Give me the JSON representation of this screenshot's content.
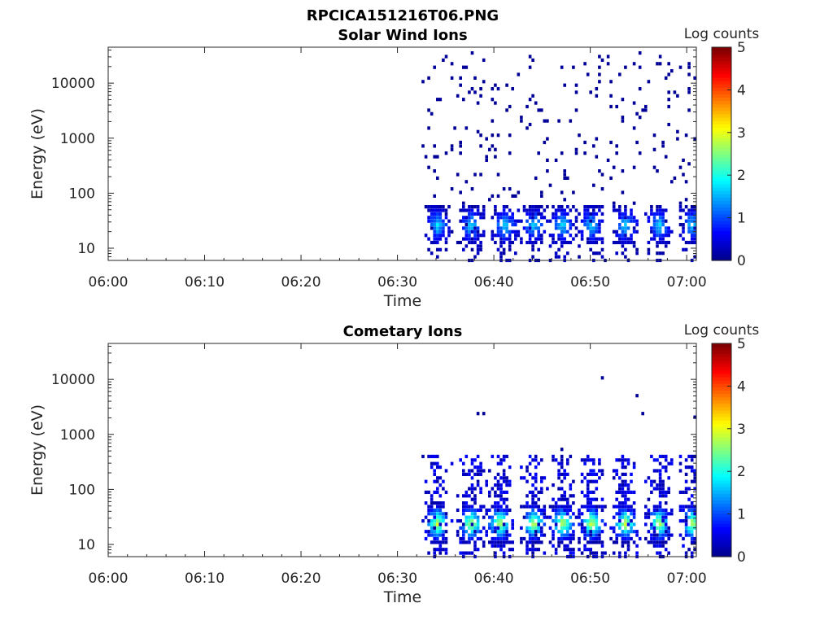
{
  "figure_title": "RPCICA151216T06.PNG",
  "colorbar_label": "Log counts",
  "colormap": [
    "#00008f",
    "#0000ff",
    "#0080ff",
    "#00ffff",
    "#80ff80",
    "#ffff00",
    "#ff8000",
    "#ff0000",
    "#800000"
  ],
  "chart_data": [
    {
      "type": "heatmap",
      "title": "Solar Wind Ions",
      "xlabel": "Time",
      "ylabel": "Energy (eV)",
      "x_ticks": [
        "06:00",
        "06:10",
        "06:20",
        "06:30",
        "06:40",
        "06:50",
        "07:00"
      ],
      "y_ticks": [
        "10",
        "100",
        "1000",
        "10000"
      ],
      "y_scale": "log",
      "x_range_minutes": [
        0,
        61
      ],
      "y_range_ev": [
        6,
        45000
      ],
      "colorbar_range": [
        0,
        5
      ],
      "colorbar_ticks": [
        "0",
        "1",
        "2",
        "3",
        "4",
        "5"
      ],
      "data_start_minutes": 32.5,
      "bursts_minutes": [
        34,
        37.5,
        41,
        44,
        47,
        50,
        53.5,
        57,
        60.5
      ],
      "pattern": "dense low-energy patches (~15-40 eV, log counts ~1-2) at each burst; sparse single counts (log counts ~0) scattered up to ~30000 eV"
    },
    {
      "type": "heatmap",
      "title": "Cometary Ions",
      "xlabel": "Time",
      "ylabel": "Energy (eV)",
      "x_ticks": [
        "06:00",
        "06:10",
        "06:20",
        "06:30",
        "06:40",
        "06:50",
        "07:00"
      ],
      "y_ticks": [
        "10",
        "100",
        "1000",
        "10000"
      ],
      "y_scale": "log",
      "x_range_minutes": [
        0,
        61
      ],
      "y_range_ev": [
        6,
        45000
      ],
      "colorbar_range": [
        0,
        5
      ],
      "colorbar_ticks": [
        "0",
        "1",
        "2",
        "3",
        "4",
        "5"
      ],
      "data_start_minutes": 32.5,
      "bursts_minutes": [
        34,
        37.5,
        40.5,
        44,
        47,
        50,
        53.5,
        57,
        60.5
      ],
      "pattern": "bright patches (~15-40 eV, log counts ~2-3) at each burst, tails up to ~400 eV, few isolated counts up to ~8000 eV"
    }
  ]
}
